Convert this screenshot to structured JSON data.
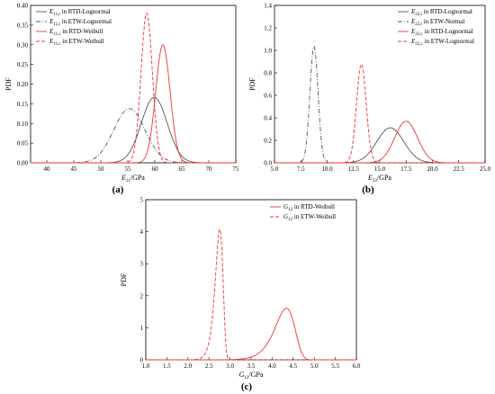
{
  "chart_data": [
    {
      "type": "line",
      "panel_label": "(a)",
      "xlabel_main": "E",
      "xlabel_sub": "11",
      "xlabel_unit": "/GPa",
      "ylabel": "PDF",
      "xlim": [
        37,
        75
      ],
      "ylim": [
        0,
        0.4
      ],
      "xticks": [
        40,
        45,
        50,
        55,
        60,
        65,
        70,
        75
      ],
      "xtick_labels": [
        "40",
        "45",
        "50",
        "55",
        "60",
        "65",
        "70",
        "75"
      ],
      "yticks": [
        0,
        0.05,
        0.1,
        0.15,
        0.2,
        0.25,
        0.3,
        0.35,
        0.4
      ],
      "ytick_labels": [
        "0.00",
        "0.05",
        "0.10",
        "0.15",
        "0.20",
        "0.25",
        "0.30",
        "0.35",
        "0.40"
      ],
      "legend_position": "top-left",
      "series": [
        {
          "name_main": "E",
          "name_sub": "11,t",
          "name_rest": " in RTD-Lognormal",
          "color": "#555555",
          "dash": "solid",
          "dist": "normal",
          "mu": 59.9,
          "sigma": 2.4
        },
        {
          "name_main": "E",
          "name_sub": "11,t",
          "name_rest": " in ETW-Lognormal",
          "color": "#555555",
          "dash": "dashdot",
          "dist": "normal",
          "mu": 55.3,
          "sigma": 2.9
        },
        {
          "name_main": "E",
          "name_sub": "11,c",
          "name_rest": " in RTD-Weibull",
          "color": "#ee3333",
          "dash": "solid",
          "dist": "normal",
          "mu": 61.5,
          "sigma": 1.33
        },
        {
          "name_main": "E",
          "name_sub": "11,c",
          "name_rest": " in ETW-Weibull",
          "color": "#ee3333",
          "dash": "dash",
          "dist": "normal",
          "mu": 58.5,
          "sigma": 1.05
        }
      ]
    },
    {
      "type": "line",
      "panel_label": "(b)",
      "xlabel_main": "E",
      "xlabel_sub": "22",
      "xlabel_unit": "/GPa",
      "ylabel": "PDF",
      "xlim": [
        5,
        25
      ],
      "ylim": [
        0,
        1.4
      ],
      "xticks": [
        5,
        7.5,
        10,
        12.5,
        15,
        17.5,
        20,
        22.5,
        25
      ],
      "xtick_labels": [
        "5.0",
        "7.5",
        "10.0",
        "12.5",
        "15.0",
        "17.5",
        "20.0",
        "22.5",
        "25.0"
      ],
      "yticks": [
        0,
        0.2,
        0.4,
        0.6,
        0.8,
        1.0,
        1.2,
        1.4
      ],
      "ytick_labels": [
        "0.0",
        "0.2",
        "0.4",
        "0.6",
        "0.8",
        "1.0",
        "1.2",
        "1.4"
      ],
      "legend_position": "top-right",
      "series": [
        {
          "name_main": "E",
          "name_sub": "22,t",
          "name_rest": " in RTD-Lognormal",
          "color": "#555555",
          "dash": "solid",
          "dist": "normal",
          "mu": 16.0,
          "sigma": 1.28
        },
        {
          "name_main": "E",
          "name_sub": "22,t",
          "name_rest": " in ETW-Normal",
          "color": "#555555",
          "dash": "dashdot",
          "dist": "normal",
          "mu": 8.75,
          "sigma": 0.385
        },
        {
          "name_main": "E",
          "name_sub": "22,c",
          "name_rest": " in RTD-Lognormal",
          "color": "#ee3333",
          "dash": "solid",
          "dist": "normal",
          "mu": 17.5,
          "sigma": 1.08
        },
        {
          "name_main": "E",
          "name_sub": "22,c",
          "name_rest": " in ETW-Lognormal",
          "color": "#ee3333",
          "dash": "dash",
          "dist": "normal",
          "mu": 13.25,
          "sigma": 0.455
        }
      ]
    },
    {
      "type": "line",
      "panel_label": "(c)",
      "xlabel_main": "G",
      "xlabel_sub": "12",
      "xlabel_unit": "/GPa",
      "ylabel": "PDF",
      "xlim": [
        1,
        6
      ],
      "ylim": [
        0,
        5
      ],
      "xticks": [
        1.0,
        1.5,
        2.0,
        2.5,
        3.0,
        3.5,
        4.0,
        4.5,
        5.0,
        5.5,
        6.0
      ],
      "xtick_labels": [
        "1.0",
        "1.5",
        "2.0",
        "2.5",
        "3.0",
        "3.5",
        "4.0",
        "4.5",
        "5.0",
        "5.5",
        "6.0"
      ],
      "yticks": [
        0,
        1,
        2,
        3,
        4,
        5
      ],
      "ytick_labels": [
        "0",
        "1",
        "2",
        "3",
        "4",
        "5"
      ],
      "legend_position": "top-right",
      "series": [
        {
          "name_main": "G",
          "name_sub": "12",
          "name_rest": " in RTD-Weibull",
          "color": "#ee3333",
          "dash": "solid",
          "dist": "weibull",
          "scale": 4.35,
          "shape": 19.0
        },
        {
          "name_main": "G",
          "name_sub": "12",
          "name_rest": " in ETW-Weibull",
          "color": "#ee3333",
          "dash": "dash",
          "dist": "weibull",
          "scale": 2.76,
          "shape": 30.6
        }
      ]
    }
  ]
}
